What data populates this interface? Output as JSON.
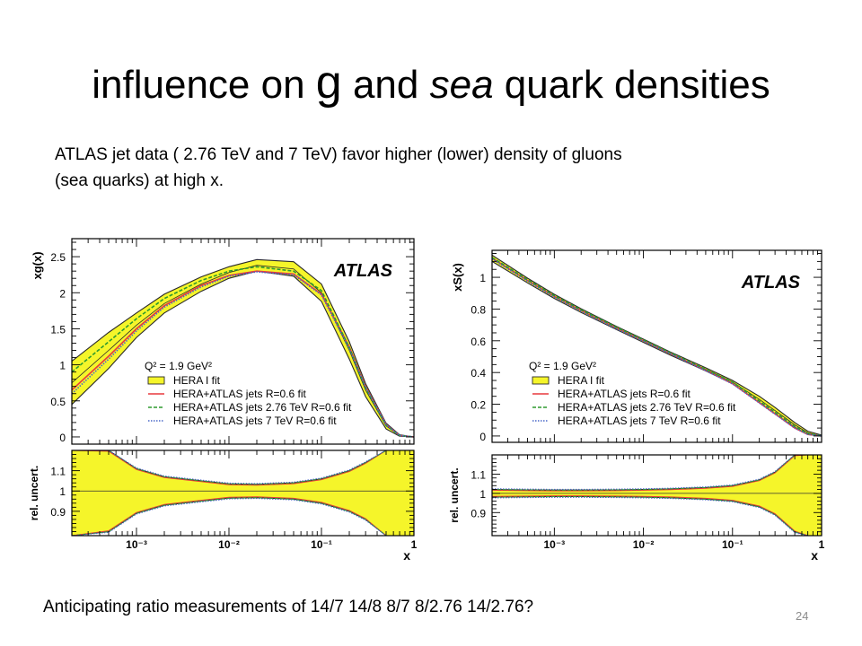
{
  "slide": {
    "title_pre": "influence on ",
    "title_g": "g",
    "title_mid": " and ",
    "title_sea": "sea",
    "title_post": " quark densities",
    "intro_line1": "ATLAS jet data ( 2.76 TeV and 7 TeV) favor higher (lower)  density of gluons",
    "intro_line2": "(sea quarks)  at high x.",
    "bottom_text": "Anticipating ratio measurements of 14/7 14/8 8/7 8/2.76 14/2.76?",
    "page_number": "24"
  },
  "colors": {
    "band_fill": "#f5f52a",
    "band_edge": "#2a2a2a",
    "hera_atlas": "#e8383d",
    "hera_atlas_276": "#2e9a2e",
    "hera_atlas_7": "#4a68c8"
  },
  "chart_data": [
    {
      "type": "line",
      "brand": "ATLAS",
      "scale_label": "Q² = 1.9 GeV²",
      "ylabel": "xg(x)",
      "ratio_ylabel": "rel. uncert.",
      "xlabel": "x",
      "x_log": true,
      "xlim": [
        0.0002,
        1
      ],
      "ylim": [
        -0.1,
        2.75
      ],
      "ratio_ylim": [
        0.78,
        1.2
      ],
      "x_tick_labels": [
        "10⁻³",
        "10⁻²",
        "10⁻¹",
        "1"
      ],
      "y_tick_labels": [
        "0",
        "0.5",
        "1",
        "1.5",
        "2",
        "2.5"
      ],
      "ratio_tick_labels": [
        "0.9",
        "1",
        "1.1"
      ],
      "legend": [
        "HERA I fit",
        "HERA+ATLAS jets R=0.6 fit",
        "HERA+ATLAS jets 2.76 TeV R=0.6 fit",
        "HERA+ATLAS jets 7 TeV R=0.6 fit"
      ],
      "x": [
        0.0002,
        0.0005,
        0.001,
        0.002,
        0.005,
        0.01,
        0.02,
        0.05,
        0.1,
        0.2,
        0.3,
        0.5,
        0.7,
        1.0
      ],
      "band": {
        "central": [
          0.75,
          1.2,
          1.55,
          1.85,
          2.12,
          2.28,
          2.38,
          2.33,
          2.0,
          1.2,
          0.65,
          0.15,
          0.02,
          0.0
        ],
        "upper": [
          1.05,
          1.45,
          1.72,
          1.98,
          2.22,
          2.36,
          2.46,
          2.43,
          2.12,
          1.32,
          0.74,
          0.19,
          0.03,
          0.0
        ],
        "lower": [
          0.45,
          0.95,
          1.38,
          1.72,
          2.02,
          2.2,
          2.3,
          2.23,
          1.88,
          1.08,
          0.56,
          0.11,
          0.01,
          0.0
        ]
      },
      "series": [
        {
          "name": "HERA+ATLAS jets R=0.6 fit",
          "values": [
            0.65,
            1.12,
            1.5,
            1.82,
            2.1,
            2.24,
            2.3,
            2.26,
            1.98,
            1.25,
            0.7,
            0.17,
            0.02,
            0.0
          ]
        },
        {
          "name": "HERA+ATLAS jets 2.76 TeV R=0.6 fit",
          "values": [
            0.9,
            1.32,
            1.64,
            1.92,
            2.17,
            2.3,
            2.36,
            2.3,
            2.03,
            1.24,
            0.68,
            0.16,
            0.02,
            0.0
          ]
        },
        {
          "name": "HERA+ATLAS jets 7 TeV R=0.6 fit",
          "values": [
            0.6,
            1.08,
            1.47,
            1.8,
            2.08,
            2.23,
            2.29,
            2.25,
            1.97,
            1.22,
            0.69,
            0.17,
            0.02,
            0.0
          ]
        }
      ],
      "ratio_band": {
        "upper": [
          1.4,
          1.2,
          1.11,
          1.07,
          1.05,
          1.035,
          1.033,
          1.04,
          1.06,
          1.1,
          1.14,
          1.26,
          1.5,
          1.5
        ],
        "lower": [
          0.6,
          0.8,
          0.89,
          0.93,
          0.95,
          0.965,
          0.967,
          0.96,
          0.94,
          0.9,
          0.86,
          0.74,
          0.5,
          0.5
        ]
      }
    },
    {
      "type": "line",
      "brand": "ATLAS",
      "scale_label": "Q² = 1.9 GeV²",
      "ylabel": "xS(x)",
      "ratio_ylabel": "rel. uncert.",
      "xlabel": "x",
      "x_log": true,
      "xlim": [
        0.0002,
        1
      ],
      "ylim": [
        -0.04,
        1.17
      ],
      "ratio_ylim": [
        0.78,
        1.2
      ],
      "x_tick_labels": [
        "10⁻³",
        "10⁻²",
        "10⁻¹",
        "1"
      ],
      "y_tick_labels": [
        "0",
        "0.2",
        "0.4",
        "0.6",
        "0.8",
        "1"
      ],
      "ratio_tick_labels": [
        "0.9",
        "1",
        "1.1"
      ],
      "legend": [
        "HERA I fit",
        "HERA+ATLAS jets R=0.6 fit",
        "HERA+ATLAS jets 2.76 TeV R=0.6 fit",
        "HERA+ATLAS jets 7 TeV R=0.6 fit"
      ],
      "x": [
        0.0002,
        0.0005,
        0.001,
        0.002,
        0.005,
        0.01,
        0.02,
        0.05,
        0.1,
        0.2,
        0.3,
        0.5,
        0.7,
        1.0
      ],
      "band": {
        "central": [
          1.12,
          0.98,
          0.88,
          0.79,
          0.68,
          0.6,
          0.52,
          0.42,
          0.34,
          0.23,
          0.16,
          0.07,
          0.02,
          0.0
        ],
        "upper": [
          1.14,
          0.995,
          0.893,
          0.802,
          0.69,
          0.61,
          0.53,
          0.43,
          0.35,
          0.25,
          0.18,
          0.085,
          0.03,
          0.005
        ],
        "lower": [
          1.1,
          0.965,
          0.867,
          0.778,
          0.67,
          0.59,
          0.51,
          0.41,
          0.33,
          0.21,
          0.14,
          0.055,
          0.01,
          0.0
        ]
      },
      "series": [
        {
          "name": "HERA+ATLAS jets R=0.6 fit",
          "values": [
            1.12,
            0.98,
            0.88,
            0.79,
            0.68,
            0.6,
            0.52,
            0.415,
            0.33,
            0.21,
            0.14,
            0.05,
            0.01,
            0.0
          ]
        },
        {
          "name": "HERA+ATLAS jets 2.76 TeV R=0.6 fit",
          "values": [
            1.125,
            0.985,
            0.885,
            0.795,
            0.685,
            0.605,
            0.525,
            0.42,
            0.34,
            0.22,
            0.15,
            0.06,
            0.015,
            0.0
          ]
        },
        {
          "name": "HERA+ATLAS jets 7 TeV R=0.6 fit",
          "values": [
            1.115,
            0.975,
            0.875,
            0.785,
            0.675,
            0.597,
            0.518,
            0.412,
            0.328,
            0.208,
            0.138,
            0.05,
            0.01,
            0.0
          ]
        }
      ],
      "ratio_band": {
        "upper": [
          1.02,
          1.018,
          1.017,
          1.017,
          1.018,
          1.02,
          1.023,
          1.03,
          1.04,
          1.07,
          1.11,
          1.2,
          1.3,
          1.3
        ],
        "lower": [
          0.98,
          0.982,
          0.983,
          0.983,
          0.982,
          0.98,
          0.977,
          0.97,
          0.96,
          0.93,
          0.89,
          0.8,
          0.7,
          0.7
        ]
      }
    }
  ]
}
